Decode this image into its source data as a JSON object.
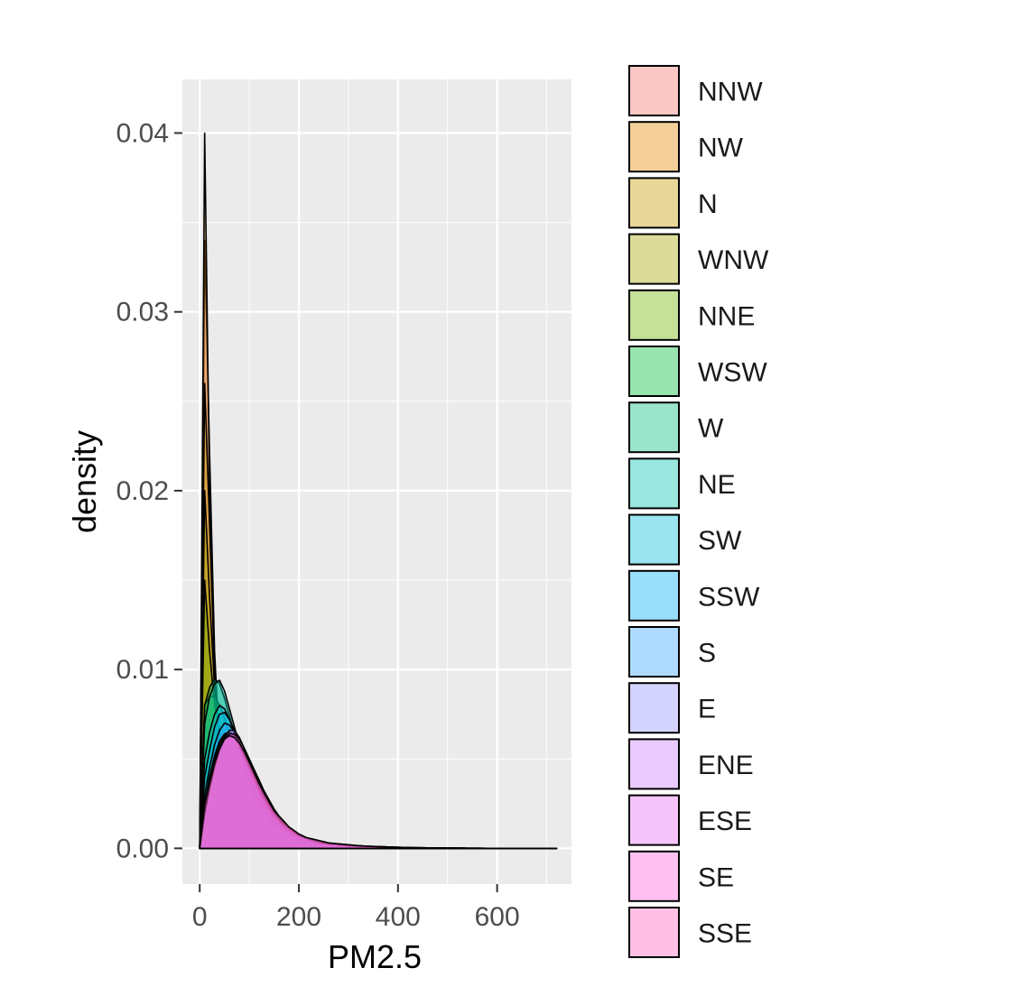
{
  "chart_data": {
    "type": "area",
    "subtype": "density",
    "title": "",
    "xlabel": "PM2.5",
    "ylabel": "density",
    "xlim": [
      -35,
      750
    ],
    "ylim": [
      -0.002,
      0.043
    ],
    "xticks": [
      0,
      200,
      400,
      600
    ],
    "xtick_labels": [
      "0",
      "200",
      "400",
      "600"
    ],
    "yticks": [
      0.0,
      0.01,
      0.02,
      0.03,
      0.04
    ],
    "ytick_labels": [
      "0.00",
      "0.01",
      "0.02",
      "0.03",
      "0.04"
    ],
    "grid": true,
    "legend_position": "right",
    "fill_alpha": 0.4,
    "x": [
      0,
      10,
      20,
      30,
      40,
      50,
      60,
      70,
      80,
      90,
      100,
      110,
      120,
      130,
      140,
      150,
      160,
      170,
      180,
      190,
      200,
      215,
      230,
      245,
      260,
      280,
      300,
      320,
      340,
      360,
      380,
      400,
      430,
      460,
      490,
      520,
      560,
      600,
      650,
      700,
      720
    ],
    "series": [
      {
        "name": "NNW",
        "color": "#F8766D",
        "values": [
          0.0,
          0.034,
          0.022,
          0.011,
          0.0055,
          0.0035,
          0.0025,
          0.002,
          0.0015,
          0.0012,
          0.001,
          0.0008,
          0.0007,
          0.0006,
          0.0005,
          0.0004,
          0.0004,
          0.0003,
          0.0003,
          0.0002,
          0.0002,
          0.0002,
          0.00015,
          0.00012,
          0.0001,
          8e-05,
          6e-05,
          5e-05,
          4e-05,
          3e-05,
          2e-05,
          2e-05,
          1e-05,
          1e-05,
          1e-05,
          0.0,
          0.0,
          0.0,
          0.0,
          0.0,
          0.0
        ]
      },
      {
        "name": "NW",
        "color": "#E58700",
        "values": [
          0.0,
          0.04,
          0.02,
          0.009,
          0.005,
          0.0033,
          0.0024,
          0.0018,
          0.0014,
          0.0011,
          0.0009,
          0.0008,
          0.0007,
          0.0006,
          0.0005,
          0.0004,
          0.0004,
          0.0003,
          0.0003,
          0.0002,
          0.0002,
          0.0002,
          0.00015,
          0.00012,
          0.0001,
          8e-05,
          6e-05,
          5e-05,
          4e-05,
          3e-05,
          2e-05,
          2e-05,
          1e-05,
          1e-05,
          1e-05,
          0.0,
          0.0,
          0.0,
          0.0,
          0.0,
          0.0
        ]
      },
      {
        "name": "N",
        "color": "#C99800",
        "values": [
          0.0,
          0.026,
          0.018,
          0.01,
          0.006,
          0.004,
          0.003,
          0.0023,
          0.0018,
          0.0014,
          0.0011,
          0.0009,
          0.0008,
          0.0007,
          0.0006,
          0.0005,
          0.0004,
          0.0004,
          0.0003,
          0.0003,
          0.0002,
          0.0002,
          0.00015,
          0.00012,
          0.0001,
          8e-05,
          6e-05,
          5e-05,
          4e-05,
          3e-05,
          2e-05,
          2e-05,
          1e-05,
          1e-05,
          1e-05,
          0.0,
          0.0,
          0.0,
          0.0,
          0.0,
          0.0
        ]
      },
      {
        "name": "WNW",
        "color": "#A3A500",
        "values": [
          0.0,
          0.02,
          0.014,
          0.009,
          0.006,
          0.0045,
          0.0035,
          0.0028,
          0.0022,
          0.0018,
          0.0014,
          0.0012,
          0.001,
          0.0008,
          0.0007,
          0.0006,
          0.0005,
          0.0004,
          0.0004,
          0.0003,
          0.0003,
          0.0002,
          0.0002,
          0.00015,
          0.00012,
          0.0001,
          8e-05,
          6e-05,
          5e-05,
          4e-05,
          3e-05,
          2e-05,
          1e-05,
          1e-05,
          1e-05,
          0.0,
          0.0,
          0.0,
          0.0,
          0.0,
          0.0
        ]
      },
      {
        "name": "NNE",
        "color": "#6BB100",
        "values": [
          0.0,
          0.015,
          0.011,
          0.008,
          0.0065,
          0.0055,
          0.0048,
          0.004,
          0.0034,
          0.0028,
          0.0023,
          0.0019,
          0.0016,
          0.0013,
          0.0011,
          0.0009,
          0.0008,
          0.0007,
          0.0006,
          0.0005,
          0.0004,
          0.0003,
          0.00025,
          0.0002,
          0.00015,
          0.00012,
          0.0001,
          8e-05,
          6e-05,
          5e-05,
          4e-05,
          3e-05,
          2e-05,
          1e-05,
          1e-05,
          1e-05,
          0.0,
          0.0,
          0.0,
          0.0,
          0.0
        ]
      },
      {
        "name": "WSW",
        "color": "#00BA38",
        "values": [
          0.0,
          0.008,
          0.0085,
          0.0085,
          0.008,
          0.0073,
          0.0065,
          0.0057,
          0.0049,
          0.0041,
          0.0034,
          0.0028,
          0.0023,
          0.0019,
          0.0016,
          0.0013,
          0.0011,
          0.0009,
          0.0008,
          0.0006,
          0.0005,
          0.0004,
          0.0003,
          0.00025,
          0.0002,
          0.00015,
          0.00012,
          0.0001,
          8e-05,
          6e-05,
          5e-05,
          4e-05,
          3e-05,
          2e-05,
          1e-05,
          1e-05,
          0.0,
          0.0,
          0.0,
          0.0,
          0.0
        ]
      },
      {
        "name": "W",
        "color": "#00BF7D",
        "values": [
          0.0,
          0.008,
          0.009,
          0.0095,
          0.0092,
          0.0084,
          0.0074,
          0.0064,
          0.0054,
          0.0045,
          0.0037,
          0.003,
          0.0025,
          0.002,
          0.0016,
          0.0013,
          0.0011,
          0.0009,
          0.0007,
          0.0006,
          0.0005,
          0.0004,
          0.0003,
          0.00025,
          0.0002,
          0.00015,
          0.00012,
          0.0001,
          8e-05,
          6e-05,
          5e-05,
          4e-05,
          3e-05,
          2e-05,
          1e-05,
          1e-05,
          0.0,
          0.0,
          0.0,
          0.0,
          0.0
        ]
      },
      {
        "name": "NE",
        "color": "#00C0AF",
        "values": [
          0.0,
          0.007,
          0.0085,
          0.0092,
          0.0094,
          0.0088,
          0.0078,
          0.0068,
          0.0058,
          0.0048,
          0.0039,
          0.0032,
          0.0026,
          0.0021,
          0.0017,
          0.0014,
          0.0011,
          0.0009,
          0.0008,
          0.0006,
          0.0005,
          0.0004,
          0.0003,
          0.00025,
          0.0002,
          0.00015,
          0.00012,
          0.0001,
          8e-05,
          6e-05,
          5e-05,
          4e-05,
          3e-05,
          2e-05,
          1e-05,
          1e-05,
          0.0,
          0.0,
          0.0,
          0.0,
          0.0
        ]
      },
      {
        "name": "SW",
        "color": "#00BCD8",
        "values": [
          0.0,
          0.005,
          0.0065,
          0.0075,
          0.008,
          0.0078,
          0.0072,
          0.0065,
          0.0057,
          0.0049,
          0.0041,
          0.0034,
          0.0028,
          0.0023,
          0.0019,
          0.0015,
          0.0013,
          0.001,
          0.0008,
          0.0007,
          0.0006,
          0.0005,
          0.0004,
          0.0003,
          0.00025,
          0.0002,
          0.00015,
          0.00012,
          0.0001,
          8e-05,
          6e-05,
          5e-05,
          3e-05,
          2e-05,
          1e-05,
          1e-05,
          0.0,
          0.0,
          0.0,
          0.0,
          0.0
        ]
      },
      {
        "name": "SSW",
        "color": "#00B0F6",
        "values": [
          0.0,
          0.004,
          0.0055,
          0.0068,
          0.0075,
          0.0076,
          0.0072,
          0.0066,
          0.0059,
          0.0051,
          0.0044,
          0.0037,
          0.0031,
          0.0025,
          0.0021,
          0.0017,
          0.0014,
          0.0011,
          0.0009,
          0.0008,
          0.0006,
          0.0005,
          0.0004,
          0.0003,
          0.00025,
          0.0002,
          0.00015,
          0.00012,
          0.0001,
          8e-05,
          6e-05,
          5e-05,
          3e-05,
          2e-05,
          1e-05,
          1e-05,
          0.0,
          0.0,
          0.0,
          0.0,
          0.0
        ]
      },
      {
        "name": "S",
        "color": "#35A2FF",
        "values": [
          0.0,
          0.003,
          0.0045,
          0.0058,
          0.0066,
          0.007,
          0.0069,
          0.0065,
          0.0059,
          0.0052,
          0.0045,
          0.0038,
          0.0032,
          0.0027,
          0.0022,
          0.0018,
          0.0015,
          0.0012,
          0.001,
          0.0008,
          0.0007,
          0.0005,
          0.0004,
          0.0003,
          0.00025,
          0.0002,
          0.00015,
          0.00012,
          0.0001,
          8e-05,
          6e-05,
          5e-05,
          3e-05,
          2e-05,
          1e-05,
          1e-05,
          0.0,
          0.0,
          0.0,
          0.0,
          0.0
        ]
      },
      {
        "name": "E",
        "color": "#9590FF",
        "values": [
          0.0,
          0.0025,
          0.004,
          0.0052,
          0.006,
          0.0064,
          0.0065,
          0.0062,
          0.0057,
          0.0051,
          0.0045,
          0.0039,
          0.0033,
          0.0028,
          0.0023,
          0.0019,
          0.0016,
          0.0013,
          0.0011,
          0.0009,
          0.0007,
          0.0006,
          0.0004,
          0.0003,
          0.00025,
          0.0002,
          0.00015,
          0.00012,
          0.0001,
          8e-05,
          6e-05,
          5e-05,
          3e-05,
          2e-05,
          1e-05,
          1e-05,
          0.0,
          0.0,
          0.0,
          0.0,
          0.0
        ]
      },
      {
        "name": "ENE",
        "color": "#D89000",
        "display_color": "#C77CFF",
        "values": [
          0.0,
          0.0025,
          0.0038,
          0.005,
          0.0058,
          0.0063,
          0.0065,
          0.0063,
          0.0058,
          0.0052,
          0.0046,
          0.004,
          0.0034,
          0.0029,
          0.0024,
          0.002,
          0.0016,
          0.0013,
          0.0011,
          0.0009,
          0.0007,
          0.0006,
          0.0004,
          0.0003,
          0.00025,
          0.0002,
          0.00015,
          0.00012,
          0.0001,
          8e-05,
          6e-05,
          5e-05,
          3e-05,
          2e-05,
          1e-05,
          1e-05,
          0.0,
          0.0,
          0.0,
          0.0,
          0.0
        ]
      },
      {
        "name": "ESE",
        "color": "#E76BF3",
        "values": [
          0.0,
          0.002,
          0.0035,
          0.0047,
          0.0056,
          0.0062,
          0.0066,
          0.0066,
          0.0062,
          0.0056,
          0.0049,
          0.0042,
          0.0036,
          0.003,
          0.0025,
          0.0021,
          0.0017,
          0.0014,
          0.0012,
          0.001,
          0.0008,
          0.0006,
          0.0005,
          0.0004,
          0.0003,
          0.00025,
          0.0002,
          0.00015,
          0.00012,
          0.0001,
          8e-05,
          6e-05,
          4e-05,
          3e-05,
          2e-05,
          1e-05,
          1e-05,
          0.0,
          0.0,
          0.0,
          0.0
        ]
      },
      {
        "name": "SE",
        "color": "#FA62DB",
        "values": [
          0.0,
          0.002,
          0.0034,
          0.0046,
          0.0055,
          0.0061,
          0.0064,
          0.0064,
          0.0061,
          0.0056,
          0.005,
          0.0044,
          0.0038,
          0.0032,
          0.0027,
          0.0022,
          0.0018,
          0.0015,
          0.0012,
          0.001,
          0.0008,
          0.0006,
          0.0005,
          0.0004,
          0.0003,
          0.00025,
          0.0002,
          0.00015,
          0.00012,
          0.0001,
          8e-05,
          6e-05,
          4e-05,
          3e-05,
          2e-05,
          1e-05,
          1e-05,
          0.0,
          0.0,
          0.0,
          0.0
        ]
      },
      {
        "name": "SSE",
        "color": "#FF62BC",
        "values": [
          0.0,
          0.0025,
          0.0037,
          0.0048,
          0.0056,
          0.0061,
          0.0063,
          0.0062,
          0.0059,
          0.0054,
          0.0048,
          0.0042,
          0.0036,
          0.0031,
          0.0026,
          0.0021,
          0.0018,
          0.0015,
          0.0012,
          0.001,
          0.0008,
          0.0006,
          0.0005,
          0.0004,
          0.0003,
          0.00025,
          0.0002,
          0.00015,
          0.00012,
          0.0001,
          8e-05,
          6e-05,
          4e-05,
          3e-05,
          2e-05,
          1e-05,
          1e-05,
          0.0,
          0.0,
          0.0,
          0.0
        ]
      }
    ]
  }
}
